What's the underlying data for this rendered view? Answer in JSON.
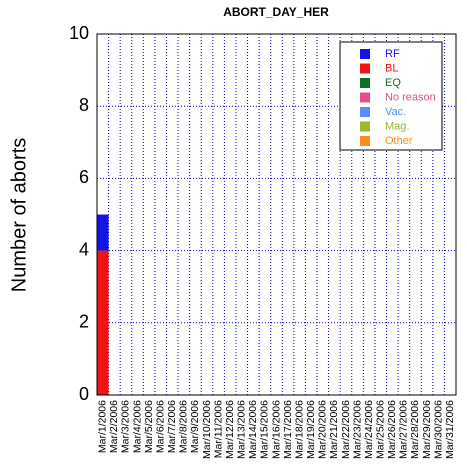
{
  "chart_data": {
    "type": "stacked-bar",
    "title": "ABORT_DAY_HER",
    "y_label": "Number of aborts",
    "categories": [
      "Mar/1/2006",
      "Mar/2/2006",
      "Mar/3/2006",
      "Mar/4/2006",
      "Mar/5/2006",
      "Mar/6/2006",
      "Mar/7/2006",
      "Mar/8/2006",
      "Mar/9/2006",
      "Mar/10/2006",
      "Mar/11/2006",
      "Mar/12/2006",
      "Mar/13/2006",
      "Mar/14/2006",
      "Mar/15/2006",
      "Mar/16/2006",
      "Mar/17/2006",
      "Mar/18/2006",
      "Mar/19/2006",
      "Mar/20/2006",
      "Mar/21/2006",
      "Mar/22/2006",
      "Mar/23/2006",
      "Mar/24/2006",
      "Mar/25/2006",
      "Mar/26/2006",
      "Mar/27/2006",
      "Mar/28/2006",
      "Mar/29/2006",
      "Mar/30/2006",
      "Mar/31/2006"
    ],
    "series": [
      {
        "name": "RF",
        "color": "#1414e6",
        "values": [
          1,
          0,
          0,
          0,
          0,
          0,
          0,
          0,
          0,
          0,
          0,
          0,
          0,
          0,
          0,
          0,
          0,
          0,
          0,
          0,
          0,
          0,
          0,
          0,
          0,
          0,
          0,
          0,
          0,
          0,
          0
        ]
      },
      {
        "name": "BL",
        "color": "#f01414",
        "values": [
          4,
          0,
          0,
          0,
          0,
          0,
          0,
          0,
          0,
          0,
          0,
          0,
          0,
          0,
          0,
          0,
          0,
          0,
          0,
          0,
          0,
          0,
          0,
          0,
          0,
          0,
          0,
          0,
          0,
          0,
          0
        ]
      },
      {
        "name": "EQ",
        "color": "#0f6e28",
        "values": [
          0,
          0,
          0,
          0,
          0,
          0,
          0,
          0,
          0,
          0,
          0,
          0,
          0,
          0,
          0,
          0,
          0,
          0,
          0,
          0,
          0,
          0,
          0,
          0,
          0,
          0,
          0,
          0,
          0,
          0,
          0
        ]
      },
      {
        "name": "No reason",
        "color": "#e0508c",
        "values": [
          0,
          0,
          0,
          0,
          0,
          0,
          0,
          0,
          0,
          0,
          0,
          0,
          0,
          0,
          0,
          0,
          0,
          0,
          0,
          0,
          0,
          0,
          0,
          0,
          0,
          0,
          0,
          0,
          0,
          0,
          0
        ]
      },
      {
        "name": "Vac.",
        "color": "#5a8cf5",
        "values": [
          0,
          0,
          0,
          0,
          0,
          0,
          0,
          0,
          0,
          0,
          0,
          0,
          0,
          0,
          0,
          0,
          0,
          0,
          0,
          0,
          0,
          0,
          0,
          0,
          0,
          0,
          0,
          0,
          0,
          0,
          0
        ]
      },
      {
        "name": "Mag.",
        "color": "#9ab82a",
        "values": [
          0,
          0,
          0,
          0,
          0,
          0,
          0,
          0,
          0,
          0,
          0,
          0,
          0,
          0,
          0,
          0,
          0,
          0,
          0,
          0,
          0,
          0,
          0,
          0,
          0,
          0,
          0,
          0,
          0,
          0,
          0
        ]
      },
      {
        "name": "Other",
        "color": "#f58c1e",
        "values": [
          0,
          0,
          0,
          0,
          0,
          0,
          0,
          0,
          0,
          0,
          0,
          0,
          0,
          0,
          0,
          0,
          0,
          0,
          0,
          0,
          0,
          0,
          0,
          0,
          0,
          0,
          0,
          0,
          0,
          0,
          0
        ]
      }
    ],
    "ylim": [
      0,
      10
    ],
    "yticks": [
      0,
      2,
      4,
      6,
      8,
      10
    ],
    "grid": true,
    "legend": "upper right"
  }
}
